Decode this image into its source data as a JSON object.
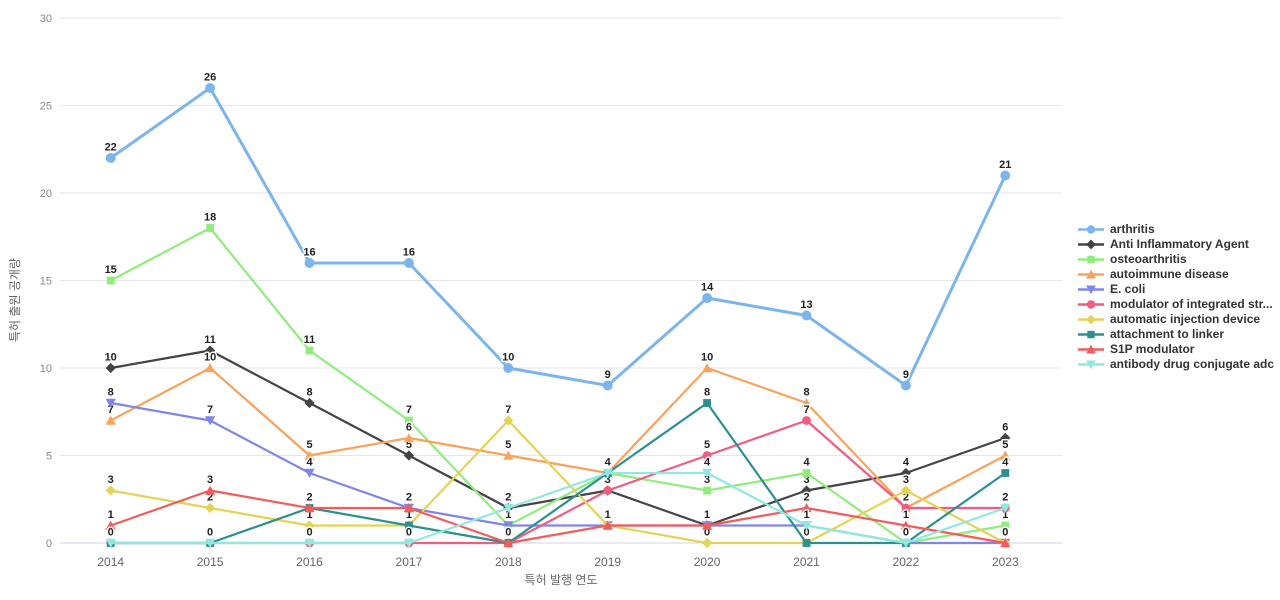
{
  "chart_data": {
    "type": "line",
    "title": "",
    "xlabel": "특허 발행 연도",
    "ylabel": "특허 출원 공개량",
    "x": [
      2014,
      2015,
      2016,
      2017,
      2018,
      2019,
      2020,
      2021,
      2022,
      2023
    ],
    "ylim": [
      0,
      30
    ],
    "yticks": [
      0,
      5,
      10,
      15,
      20,
      25,
      30
    ],
    "grid": true,
    "legend_position": "right",
    "background": "#ffffff",
    "gridline_color": "#e6e6e6",
    "axis_line_color": "#ccd6eb",
    "tick_label_color": "#888888",
    "series": [
      {
        "name": "arthritis",
        "color": "#7cb5ec",
        "marker": "circle",
        "values": [
          22,
          26,
          16,
          16,
          10,
          9,
          14,
          13,
          9,
          21
        ]
      },
      {
        "name": "Anti Inflammatory Agent",
        "color": "#434348",
        "marker": "diamond",
        "values": [
          10,
          11,
          8,
          5,
          2,
          3,
          1,
          3,
          4,
          6
        ]
      },
      {
        "name": "osteoarthritis",
        "color": "#90ed7d",
        "marker": "square",
        "values": [
          15,
          18,
          11,
          7,
          1,
          4,
          3,
          4,
          0,
          1
        ]
      },
      {
        "name": "autoimmune disease",
        "color": "#f7a35c",
        "marker": "triangle",
        "values": [
          7,
          10,
          5,
          6,
          5,
          4,
          10,
          8,
          2,
          5
        ]
      },
      {
        "name": "E. coli",
        "color": "#8085e9",
        "marker": "triangle-down",
        "values": [
          8,
          7,
          4,
          2,
          1,
          1,
          1,
          1,
          0,
          0
        ]
      },
      {
        "name": "modulator of integrated str...",
        "color": "#f15c80",
        "marker": "circle",
        "values": [
          0,
          0,
          0,
          0,
          0,
          3,
          5,
          7,
          2,
          2
        ]
      },
      {
        "name": "automatic injection device",
        "color": "#e4d354",
        "marker": "diamond",
        "values": [
          3,
          2,
          1,
          1,
          7,
          1,
          0,
          0,
          3,
          0
        ]
      },
      {
        "name": "attachment to linker",
        "color": "#2b908f",
        "marker": "square",
        "values": [
          0,
          0,
          2,
          1,
          0,
          4,
          8,
          0,
          0,
          4
        ]
      },
      {
        "name": "S1P modulator",
        "color": "#f45b5b",
        "marker": "triangle",
        "values": [
          1,
          3,
          2,
          2,
          0,
          1,
          1,
          2,
          1,
          0
        ]
      },
      {
        "name": "antibody drug conjugate adc",
        "color": "#91e8e1",
        "marker": "triangle-down",
        "values": [
          0,
          0,
          0,
          0,
          2,
          4,
          4,
          1,
          0,
          2
        ]
      }
    ]
  }
}
